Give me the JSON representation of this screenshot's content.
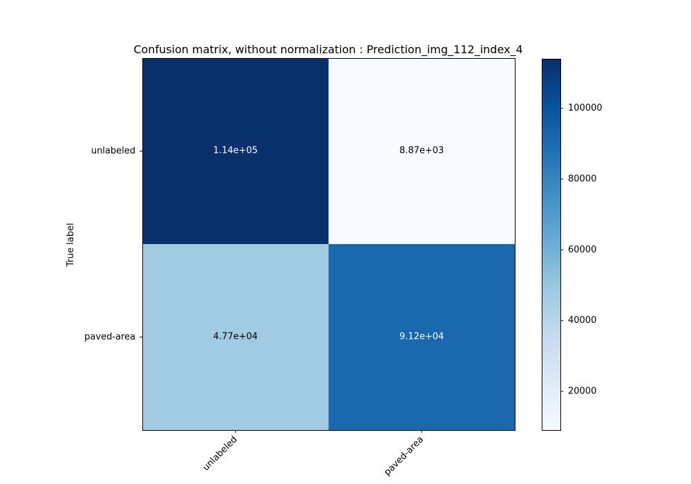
{
  "chart_data": {
    "type": "heatmap",
    "title": "Confusion matrix, without normalization : Prediction_img_112_index_4",
    "ylabel": "True label",
    "xlabel": "",
    "row_labels": [
      "unlabeled",
      "paved-area"
    ],
    "col_labels": [
      "unlabeled",
      "paved-area"
    ],
    "values": [
      [
        114000,
        8870
      ],
      [
        47700,
        91200
      ]
    ],
    "cell_text": [
      [
        "1.14e+05",
        "8.87e+03"
      ],
      [
        "4.77e+04",
        "9.12e+04"
      ]
    ],
    "colormap": "Blues",
    "colorbar": {
      "range": [
        8870,
        114000
      ],
      "ticks": [
        20000,
        40000,
        60000,
        80000,
        100000
      ],
      "tick_labels": [
        "20000",
        "40000",
        "60000",
        "80000",
        "100000"
      ]
    },
    "grid": false
  }
}
